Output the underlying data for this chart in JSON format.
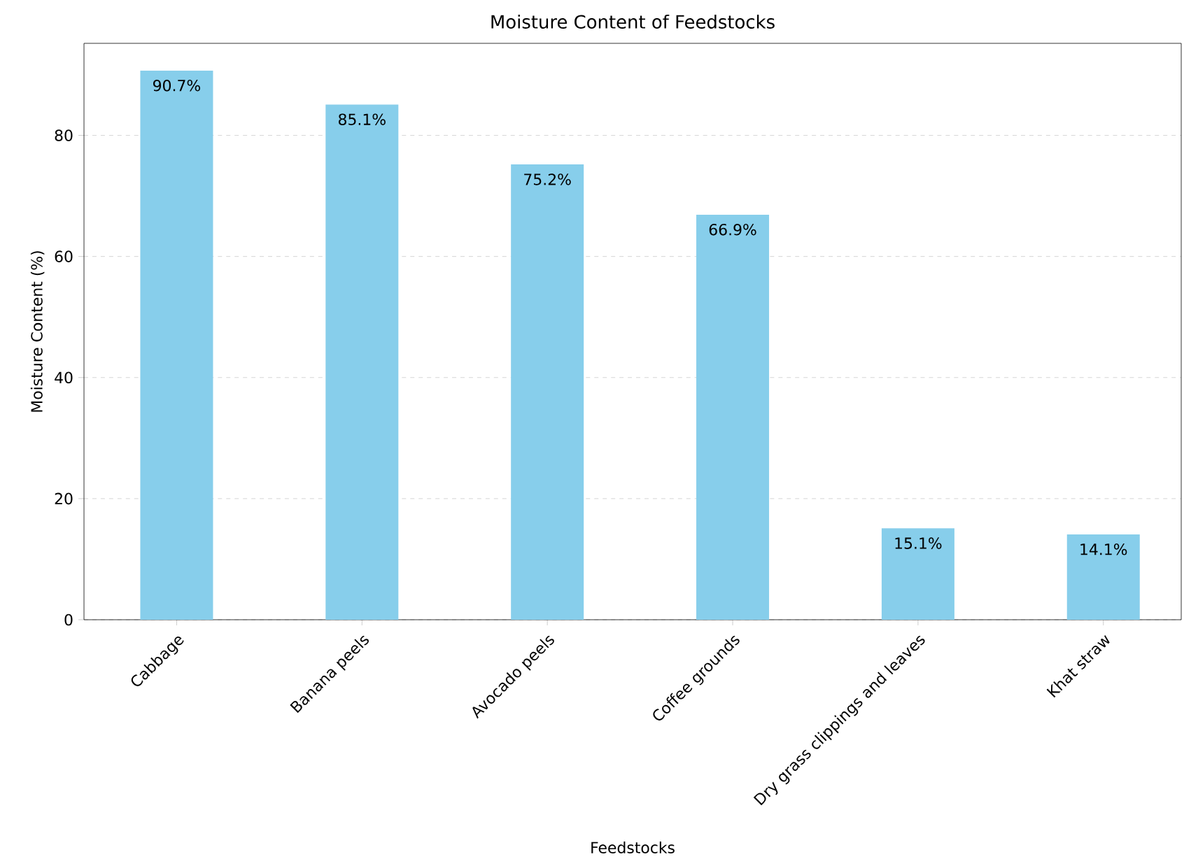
{
  "chart_data": {
    "type": "bar",
    "title": "Moisture Content of Feedstocks",
    "xlabel": "Feedstocks",
    "ylabel": "Moisture Content (%)",
    "categories": [
      "Cabbage",
      "Banana peels",
      "Avocado peels",
      "Coffee grounds",
      "Dry grass clippings and leaves",
      "Khat straw"
    ],
    "values": [
      90.7,
      85.1,
      75.2,
      66.9,
      15.1,
      14.1
    ],
    "value_labels": [
      "90.7%",
      "85.1%",
      "75.2%",
      "66.9%",
      "15.1%",
      "14.1%"
    ],
    "color": "#87ceeb",
    "ylim": [
      0,
      95.2
    ],
    "yticks": [
      0,
      20,
      40,
      60,
      80
    ],
    "grid": "y"
  }
}
